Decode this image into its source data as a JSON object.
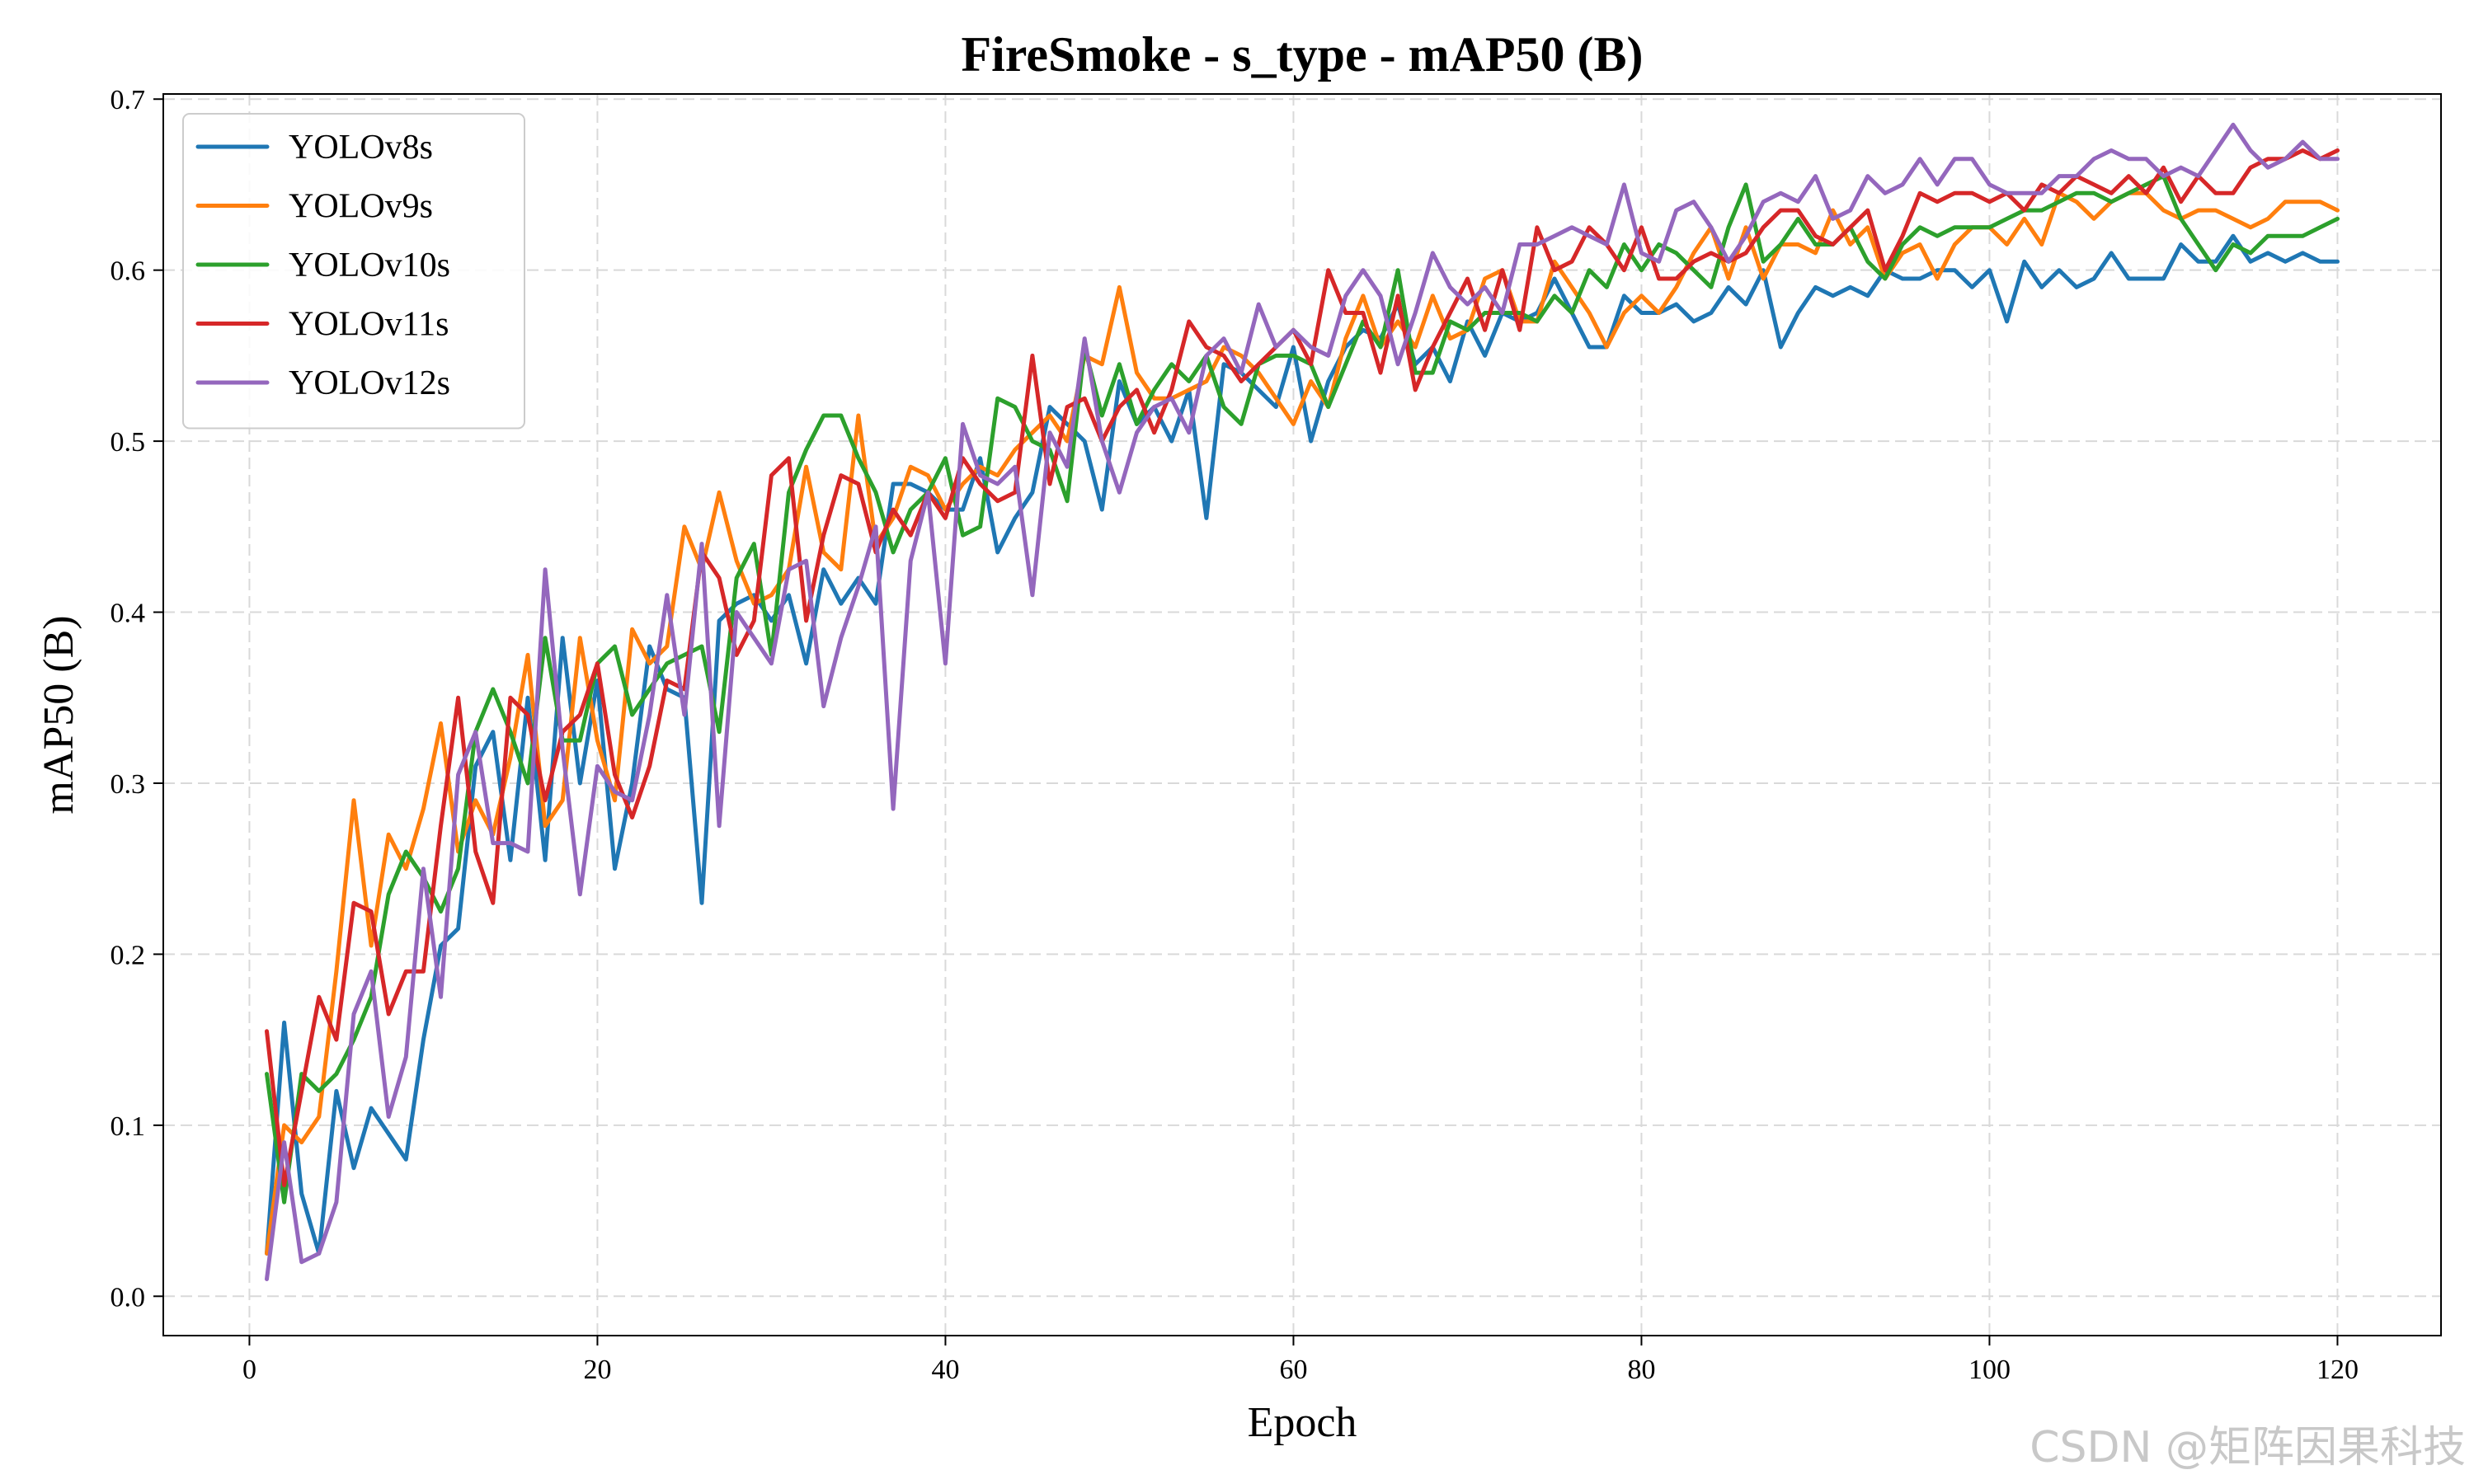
{
  "watermark": "CSDN @矩阵因果科技",
  "chart_data": {
    "type": "line",
    "title": "FireSmoke - s_type - mAP50 (B)",
    "xlabel": "Epoch",
    "ylabel": "mAP50 (B)",
    "xlim": [
      -4.95,
      125.95
    ],
    "ylim": [
      -0.023,
      0.703
    ],
    "xticks": [
      0,
      20,
      40,
      60,
      80,
      100,
      120
    ],
    "yticks": [
      0.0,
      0.1,
      0.2,
      0.3,
      0.4,
      0.5,
      0.6,
      0.7
    ],
    "grid": true,
    "legend": "upper-left",
    "x": [
      1,
      2,
      3,
      4,
      5,
      6,
      7,
      8,
      9,
      10,
      11,
      12,
      13,
      14,
      15,
      16,
      17,
      18,
      19,
      20,
      21,
      22,
      23,
      24,
      25,
      26,
      27,
      28,
      29,
      30,
      31,
      32,
      33,
      34,
      35,
      36,
      37,
      38,
      39,
      40,
      41,
      42,
      43,
      44,
      45,
      46,
      47,
      48,
      49,
      50,
      51,
      52,
      53,
      54,
      55,
      56,
      57,
      58,
      59,
      60,
      61,
      62,
      63,
      64,
      65,
      66,
      67,
      68,
      69,
      70,
      71,
      72,
      73,
      74,
      75,
      76,
      77,
      78,
      79,
      80,
      81,
      82,
      83,
      84,
      85,
      86,
      87,
      88,
      89,
      90,
      91,
      92,
      93,
      94,
      95,
      96,
      97,
      98,
      99,
      100,
      101,
      102,
      103,
      104,
      105,
      106,
      107,
      108,
      109,
      110,
      111,
      112,
      113,
      114,
      115,
      116,
      117,
      118,
      119,
      120
    ],
    "series": [
      {
        "name": "YOLOv8s",
        "color": "#1f77b4",
        "values": [
          0.025,
          0.16,
          0.06,
          0.025,
          0.12,
          0.075,
          0.11,
          0.095,
          0.08,
          0.15,
          0.205,
          0.215,
          0.31,
          0.33,
          0.255,
          0.35,
          0.255,
          0.385,
          0.3,
          0.36,
          0.25,
          0.3,
          0.38,
          0.355,
          0.35,
          0.23,
          0.395,
          0.405,
          0.41,
          0.395,
          0.41,
          0.37,
          0.425,
          0.405,
          0.42,
          0.405,
          0.475,
          0.475,
          0.47,
          0.46,
          0.46,
          0.49,
          0.435,
          0.455,
          0.47,
          0.52,
          0.51,
          0.5,
          0.46,
          0.535,
          0.51,
          0.52,
          0.5,
          0.53,
          0.455,
          0.545,
          0.54,
          0.53,
          0.52,
          0.555,
          0.5,
          0.535,
          0.555,
          0.565,
          0.56,
          0.58,
          0.545,
          0.555,
          0.535,
          0.57,
          0.55,
          0.575,
          0.57,
          0.575,
          0.595,
          0.575,
          0.555,
          0.555,
          0.585,
          0.575,
          0.575,
          0.58,
          0.57,
          0.575,
          0.59,
          0.58,
          0.6,
          0.555,
          0.575,
          0.59,
          0.585,
          0.59,
          0.585,
          0.6,
          0.595,
          0.595,
          0.6,
          0.6,
          0.59,
          0.6,
          0.57,
          0.605,
          0.59,
          0.6,
          0.59,
          0.595,
          0.61,
          0.595,
          0.595,
          0.595,
          0.615,
          0.605,
          0.605,
          0.62,
          0.605,
          0.61,
          0.605,
          0.61,
          0.605,
          0.605
        ]
      },
      {
        "name": "YOLOv9s",
        "color": "#ff7f0e",
        "values": [
          0.025,
          0.1,
          0.09,
          0.105,
          0.19,
          0.29,
          0.205,
          0.27,
          0.25,
          0.285,
          0.335,
          0.26,
          0.29,
          0.27,
          0.315,
          0.375,
          0.275,
          0.29,
          0.385,
          0.325,
          0.29,
          0.39,
          0.37,
          0.38,
          0.45,
          0.425,
          0.47,
          0.43,
          0.405,
          0.41,
          0.425,
          0.485,
          0.435,
          0.425,
          0.515,
          0.44,
          0.455,
          0.485,
          0.48,
          0.46,
          0.475,
          0.485,
          0.48,
          0.495,
          0.505,
          0.515,
          0.5,
          0.55,
          0.545,
          0.59,
          0.54,
          0.525,
          0.525,
          0.53,
          0.535,
          0.555,
          0.55,
          0.54,
          0.525,
          0.51,
          0.535,
          0.52,
          0.56,
          0.585,
          0.555,
          0.57,
          0.555,
          0.585,
          0.56,
          0.565,
          0.595,
          0.6,
          0.57,
          0.57,
          0.605,
          0.59,
          0.575,
          0.555,
          0.575,
          0.585,
          0.575,
          0.59,
          0.61,
          0.625,
          0.595,
          0.625,
          0.595,
          0.615,
          0.615,
          0.61,
          0.635,
          0.615,
          0.625,
          0.595,
          0.61,
          0.615,
          0.595,
          0.615,
          0.625,
          0.625,
          0.615,
          0.63,
          0.615,
          0.645,
          0.64,
          0.63,
          0.64,
          0.645,
          0.645,
          0.635,
          0.63,
          0.635,
          0.635,
          0.63,
          0.625,
          0.63,
          0.64,
          0.64,
          0.64,
          0.635
        ]
      },
      {
        "name": "YOLOv10s",
        "color": "#2ca02c",
        "values": [
          0.13,
          0.055,
          0.13,
          0.12,
          0.13,
          0.15,
          0.175,
          0.235,
          0.26,
          0.245,
          0.225,
          0.25,
          0.33,
          0.355,
          0.33,
          0.3,
          0.385,
          0.325,
          0.325,
          0.37,
          0.38,
          0.34,
          0.355,
          0.37,
          0.375,
          0.38,
          0.33,
          0.42,
          0.44,
          0.375,
          0.47,
          0.495,
          0.515,
          0.515,
          0.49,
          0.47,
          0.435,
          0.46,
          0.47,
          0.49,
          0.445,
          0.45,
          0.525,
          0.52,
          0.5,
          0.495,
          0.465,
          0.555,
          0.515,
          0.545,
          0.51,
          0.53,
          0.545,
          0.535,
          0.55,
          0.52,
          0.51,
          0.545,
          0.55,
          0.55,
          0.545,
          0.52,
          0.545,
          0.57,
          0.555,
          0.6,
          0.54,
          0.54,
          0.57,
          0.565,
          0.575,
          0.575,
          0.575,
          0.57,
          0.585,
          0.575,
          0.6,
          0.59,
          0.615,
          0.6,
          0.615,
          0.61,
          0.6,
          0.59,
          0.625,
          0.65,
          0.605,
          0.615,
          0.63,
          0.615,
          0.615,
          0.625,
          0.605,
          0.595,
          0.615,
          0.625,
          0.62,
          0.625,
          0.625,
          0.625,
          0.63,
          0.635,
          0.635,
          0.64,
          0.645,
          0.645,
          0.64,
          0.645,
          0.65,
          0.655,
          0.63,
          0.615,
          0.6,
          0.615,
          0.61,
          0.62,
          0.62,
          0.62,
          0.625,
          0.63
        ]
      },
      {
        "name": "YOLOv11s",
        "color": "#d62728",
        "values": [
          0.155,
          0.065,
          0.12,
          0.175,
          0.15,
          0.23,
          0.225,
          0.165,
          0.19,
          0.19,
          0.275,
          0.35,
          0.26,
          0.23,
          0.35,
          0.34,
          0.29,
          0.33,
          0.34,
          0.37,
          0.305,
          0.28,
          0.31,
          0.36,
          0.355,
          0.435,
          0.42,
          0.375,
          0.395,
          0.48,
          0.49,
          0.395,
          0.445,
          0.48,
          0.475,
          0.435,
          0.46,
          0.445,
          0.47,
          0.455,
          0.49,
          0.475,
          0.465,
          0.47,
          0.55,
          0.475,
          0.52,
          0.525,
          0.5,
          0.52,
          0.53,
          0.505,
          0.53,
          0.57,
          0.555,
          0.55,
          0.535,
          0.545,
          0.555,
          0.565,
          0.545,
          0.6,
          0.575,
          0.575,
          0.54,
          0.585,
          0.53,
          0.555,
          0.575,
          0.595,
          0.565,
          0.6,
          0.565,
          0.625,
          0.6,
          0.605,
          0.625,
          0.615,
          0.6,
          0.625,
          0.595,
          0.595,
          0.605,
          0.61,
          0.605,
          0.61,
          0.625,
          0.635,
          0.635,
          0.62,
          0.615,
          0.625,
          0.635,
          0.6,
          0.62,
          0.645,
          0.64,
          0.645,
          0.645,
          0.64,
          0.645,
          0.635,
          0.65,
          0.645,
          0.655,
          0.65,
          0.645,
          0.655,
          0.645,
          0.66,
          0.64,
          0.655,
          0.645,
          0.645,
          0.66,
          0.665,
          0.665,
          0.67,
          0.665,
          0.67
        ]
      },
      {
        "name": "YOLOv12s",
        "color": "#9467bd",
        "values": [
          0.01,
          0.09,
          0.02,
          0.025,
          0.055,
          0.165,
          0.19,
          0.105,
          0.14,
          0.25,
          0.175,
          0.305,
          0.33,
          0.265,
          0.265,
          0.26,
          0.425,
          0.32,
          0.235,
          0.31,
          0.295,
          0.29,
          0.34,
          0.41,
          0.34,
          0.44,
          0.275,
          0.4,
          0.385,
          0.37,
          0.425,
          0.43,
          0.345,
          0.385,
          0.415,
          0.45,
          0.285,
          0.43,
          0.47,
          0.37,
          0.51,
          0.48,
          0.475,
          0.485,
          0.41,
          0.505,
          0.485,
          0.56,
          0.5,
          0.47,
          0.505,
          0.52,
          0.525,
          0.505,
          0.55,
          0.56,
          0.54,
          0.58,
          0.555,
          0.565,
          0.555,
          0.55,
          0.585,
          0.6,
          0.585,
          0.545,
          0.575,
          0.61,
          0.59,
          0.58,
          0.59,
          0.575,
          0.615,
          0.615,
          0.62,
          0.625,
          0.62,
          0.615,
          0.65,
          0.61,
          0.605,
          0.635,
          0.64,
          0.625,
          0.605,
          0.62,
          0.64,
          0.645,
          0.64,
          0.655,
          0.63,
          0.635,
          0.655,
          0.645,
          0.65,
          0.665,
          0.65,
          0.665,
          0.665,
          0.65,
          0.645,
          0.645,
          0.645,
          0.655,
          0.655,
          0.665,
          0.67,
          0.665,
          0.665,
          0.655,
          0.66,
          0.655,
          0.67,
          0.685,
          0.67,
          0.66,
          0.665,
          0.675,
          0.665,
          0.665
        ]
      }
    ]
  }
}
